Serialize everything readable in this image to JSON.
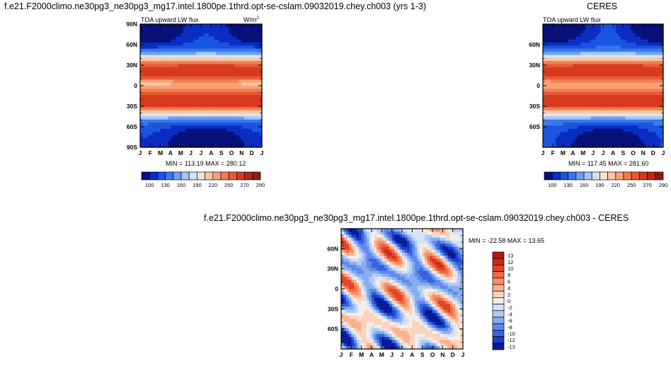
{
  "titles": {
    "main_left": "f.e21.F2000climo.ne30pg3_ne30pg3_mg17.intel.1800pe.1thrd.opt-se-cslam.09032019.chey.ch003 (yrs 1-3)",
    "main_right": "CERES",
    "diff": "f.e21.F2000climo.ne30pg3_ne30pg3_mg17.intel.1800pe.1thrd.opt-se-cslam.09032019.chey.ch003 - CERES"
  },
  "chart_data": [
    {
      "type": "heatmap",
      "panel": "model",
      "field_label": "TOA upward LW flux",
      "units_label": "W/m",
      "units_sup": "2",
      "x_ticks": [
        "J",
        "F",
        "M",
        "A",
        "M",
        "J",
        "J",
        "A",
        "S",
        "O",
        "N",
        "D",
        "J"
      ],
      "y_ticks": [
        "90N",
        "60N",
        "30N",
        "0",
        "30S",
        "60S",
        "90S"
      ],
      "stats": "MIN = 113.19 MAX = 280.12",
      "colorbar_labels": [
        "100",
        "130",
        "160",
        "190",
        "220",
        "250",
        "270",
        "290"
      ],
      "colors": [
        "#08107a",
        "#0b2dc2",
        "#1a55e0",
        "#3a78ee",
        "#6f9ff3",
        "#a6c4f5",
        "#d4e2f6",
        "#f6e3cf",
        "#f9c7a4",
        "#f7a276",
        "#f27d53",
        "#e95a34",
        "#d63b1f",
        "#b52814",
        "#8b1b10"
      ],
      "min": 113.19,
      "max": 280.12
    },
    {
      "type": "heatmap",
      "panel": "obs",
      "field_label": "TOA upward LW flux",
      "x_ticks": [
        "J",
        "F",
        "M",
        "A",
        "M",
        "J",
        "J",
        "A",
        "S",
        "O",
        "N",
        "D",
        "J"
      ],
      "y_ticks": [
        "60N",
        "30N",
        "0",
        "30S",
        "60S"
      ],
      "stats": "MIN = 117.45 MAX = 281.60",
      "colorbar_labels": [
        "100",
        "130",
        "160",
        "190",
        "220",
        "250",
        "270",
        "290"
      ],
      "min": 117.45,
      "max": 281.6
    },
    {
      "type": "heatmap",
      "panel": "difference",
      "x_ticks": [
        "J",
        "F",
        "M",
        "A",
        "M",
        "J",
        "J",
        "A",
        "S",
        "O",
        "N",
        "D",
        "J"
      ],
      "y_ticks": [
        "60N",
        "30N",
        "0",
        "30S",
        "60S"
      ],
      "stats": "MIN = -22.58 MAX =  13.65",
      "colorbar_labels": [
        "13",
        "12",
        "10",
        "8",
        "6",
        "4",
        "2",
        "0",
        "-2",
        "-4",
        "-6",
        "-8",
        "-10",
        "-12",
        "-13"
      ],
      "diff_colors": [
        "#b2180f",
        "#cc2a18",
        "#e0452a",
        "#ee6a45",
        "#f68f68",
        "#f9b08e",
        "#fbd3bd",
        "#f5efe9",
        "#d5e3f8",
        "#b1cbf3",
        "#88adee",
        "#5e8aea",
        "#3563e0",
        "#1a3fc6",
        "#0b1a99"
      ],
      "min": -22.58,
      "max": 13.65
    }
  ]
}
